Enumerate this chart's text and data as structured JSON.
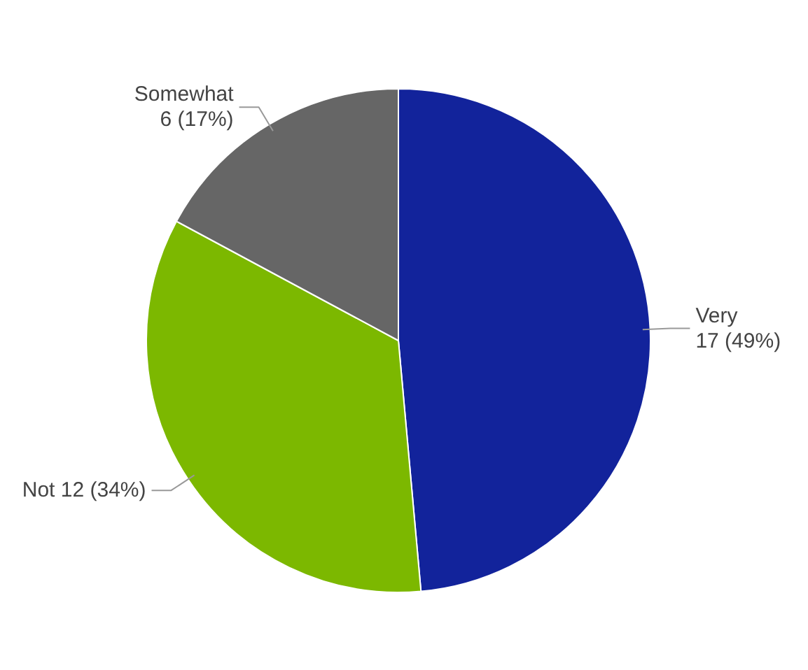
{
  "chart_data": {
    "type": "pie",
    "categories": [
      "Very",
      "Not",
      "Somewhat"
    ],
    "values": [
      17,
      12,
      6
    ],
    "value_labels": [
      "17 (49%)",
      "12 (34%)",
      "6 (17%)"
    ],
    "colors": [
      "#12239b",
      "#7cb800",
      "#666666"
    ]
  }
}
